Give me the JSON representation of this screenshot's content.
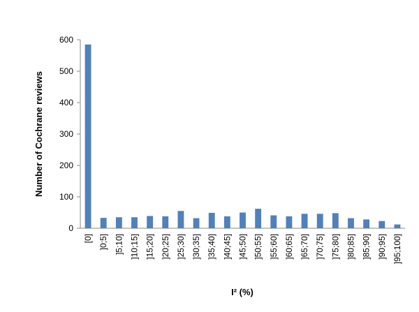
{
  "chart_data": {
    "type": "bar",
    "x_label": "I² (%)",
    "y_label": "Number of Cochrane reviews",
    "categories": [
      "[0]",
      "]0;5]",
      "]5;10]",
      "]10;15]",
      "]15;20]",
      "]20;25]",
      "]25;30]",
      "]30;35]",
      "]35;40]",
      "]40;45]",
      "]45;50]",
      "]50;55]",
      "]55;60]",
      "]60;65]",
      "]65;70]",
      "]70;75]",
      "]75;80]",
      "]80;85]",
      "]85;90]",
      "]90;95]",
      "]95;100]"
    ],
    "values": [
      585,
      33,
      35,
      35,
      39,
      38,
      55,
      32,
      49,
      38,
      50,
      62,
      41,
      38,
      46,
      46,
      48,
      32,
      28,
      23,
      12
    ],
    "color": "#4f81bd",
    "ylim": [
      0,
      600
    ],
    "yticks": [
      0,
      100,
      200,
      300,
      400,
      500,
      600
    ],
    "grid": false
  }
}
